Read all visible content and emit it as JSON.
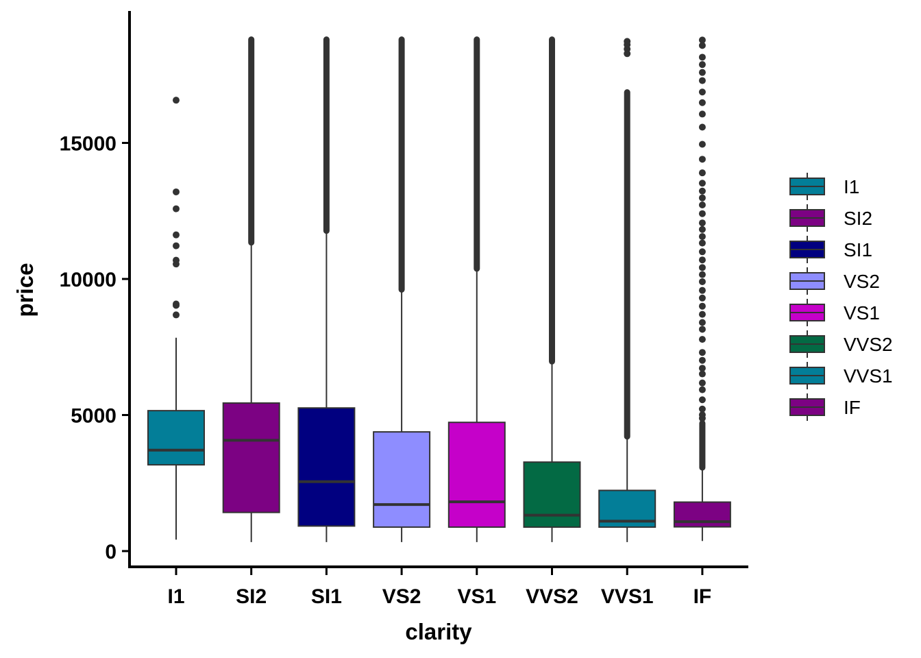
{
  "chart_data": {
    "type": "boxplot",
    "xlabel": "clarity",
    "ylabel": "price",
    "ylim": [
      -600,
      19600
    ],
    "yticks": [
      0,
      5000,
      10000,
      15000
    ],
    "grid": false,
    "legend_position": "right",
    "categories": [
      "I1",
      "SI2",
      "SI1",
      "VS2",
      "VS1",
      "VVS2",
      "VVS1",
      "IF"
    ],
    "boxes": [
      {
        "name": "I1",
        "color": "#037e98",
        "q1": 3170,
        "median": 3710,
        "q3": 5160,
        "whisker_low": 420,
        "whisker_high": 7840,
        "outliers": [
          8680,
          9030,
          9080,
          10550,
          10690,
          11220,
          11620,
          12580,
          13200,
          16570
        ]
      },
      {
        "name": "SI2",
        "color": "#7c0283",
        "q1": 1420,
        "median": 4070,
        "q3": 5440,
        "whisker_low": 330,
        "whisker_high": 11340,
        "outlier_band": [
          11340,
          18800
        ]
      },
      {
        "name": "SI1",
        "color": "#010080",
        "q1": 920,
        "median": 2550,
        "q3": 5260,
        "whisker_low": 330,
        "whisker_high": 11770,
        "outlier_band": [
          11770,
          18800
        ]
      },
      {
        "name": "VS2",
        "color": "#8e8dff",
        "q1": 880,
        "median": 1710,
        "q3": 4380,
        "whisker_low": 330,
        "whisker_high": 9610,
        "outlier_band": [
          9610,
          18800
        ]
      },
      {
        "name": "VS1",
        "color": "#c501c9",
        "q1": 880,
        "median": 1810,
        "q3": 4730,
        "whisker_low": 330,
        "whisker_high": 10380,
        "outlier_band": [
          10380,
          18800
        ]
      },
      {
        "name": "VVS2",
        "color": "#036a44",
        "q1": 880,
        "median": 1320,
        "q3": 3270,
        "whisker_low": 330,
        "whisker_high": 6970,
        "outlier_band": [
          6970,
          18800
        ]
      },
      {
        "name": "VVS1",
        "color": "#037e98",
        "q1": 880,
        "median": 1100,
        "q3": 2230,
        "whisker_low": 330,
        "whisker_high": 4210,
        "outlier_band": [
          4210,
          16860
        ],
        "outliers": [
          18280,
          18450,
          18610,
          18730
        ]
      },
      {
        "name": "IF",
        "color": "#7c0283",
        "q1": 890,
        "median": 1080,
        "q3": 1800,
        "whisker_low": 370,
        "whisker_high": 3070,
        "outlier_band": [
          3070,
          4700
        ],
        "outliers": [
          4880,
          5010,
          5220,
          5560,
          5930,
          6180,
          6510,
          6720,
          7010,
          7300,
          7780,
          8150,
          8400,
          8700,
          9000,
          9300,
          9580,
          9900,
          10160,
          10420,
          10700,
          11000,
          11320,
          11560,
          11820,
          12060,
          12400,
          12720,
          12980,
          13230,
          13520,
          13900,
          14400,
          14950,
          15580,
          16060,
          16480,
          16870,
          17290,
          17590,
          17880,
          18150,
          18580,
          18780
        ]
      }
    ]
  },
  "legend": {
    "items": [
      {
        "label": "I1",
        "color": "#037e98"
      },
      {
        "label": "SI2",
        "color": "#7c0283"
      },
      {
        "label": "SI1",
        "color": "#010080"
      },
      {
        "label": "VS2",
        "color": "#8e8dff"
      },
      {
        "label": "VS1",
        "color": "#c501c9"
      },
      {
        "label": "VVS2",
        "color": "#036a44"
      },
      {
        "label": "VVS1",
        "color": "#037e98"
      },
      {
        "label": "IF",
        "color": "#7c0283"
      }
    ]
  }
}
